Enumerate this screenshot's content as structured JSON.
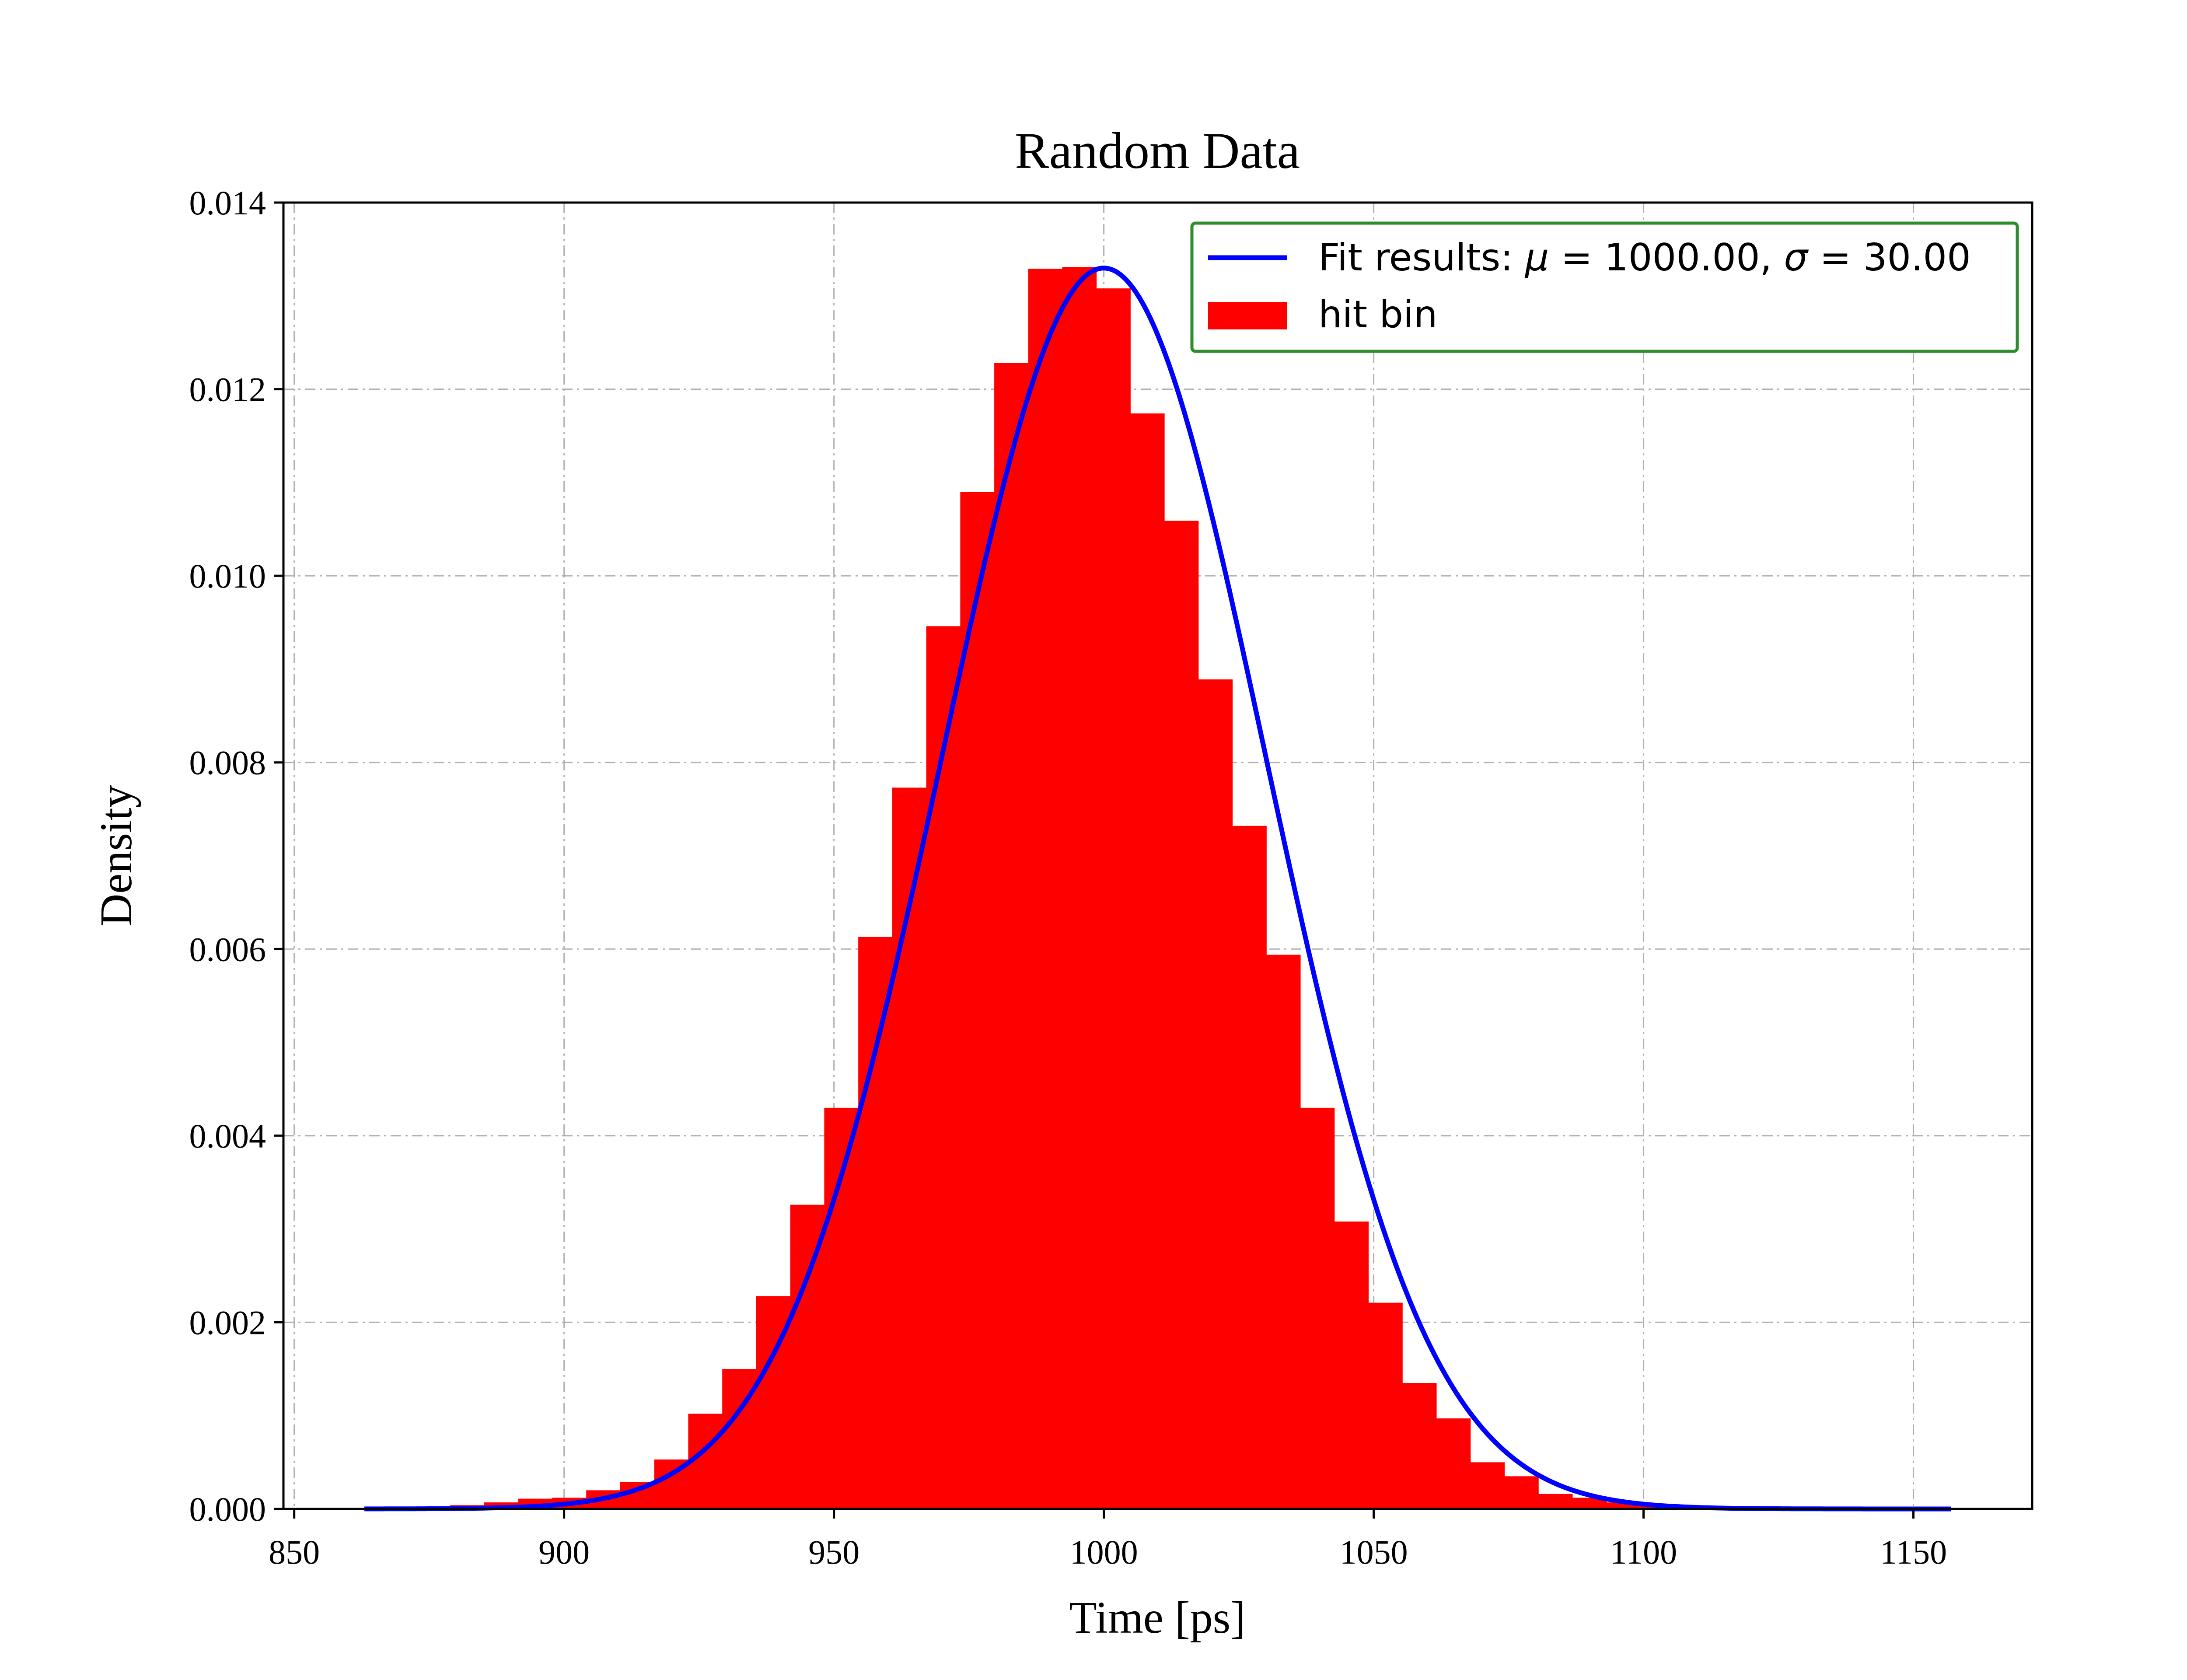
{
  "chart_data": {
    "type": "bar",
    "title": "Random Data",
    "xlabel": "Time [ps]",
    "ylabel": "Density",
    "xlim": [
      848,
      1172
    ],
    "ylim": [
      0,
      0.014
    ],
    "xticks": [
      850,
      900,
      950,
      1000,
      1050,
      1100,
      1150
    ],
    "xtick_labels": [
      "850",
      "900",
      "950",
      "1000",
      "1050",
      "1100",
      "1150"
    ],
    "yticks": [
      0,
      0.002,
      0.004,
      0.006,
      0.008,
      0.01,
      0.012,
      0.014
    ],
    "ytick_labels": [
      "0.000",
      "0.002",
      "0.004",
      "0.006",
      "0.008",
      "0.010",
      "0.012",
      "0.014"
    ],
    "grid": true,
    "legend_position": "top-right",
    "series": [
      {
        "name": "hit bin",
        "kind": "histogram",
        "color": "#ff0000",
        "bin_edges": [
          860.0,
          866.3,
          872.6,
          878.9,
          885.2,
          891.5,
          897.8,
          904.1,
          910.4,
          916.7,
          923.0,
          929.3,
          935.6,
          941.9,
          948.2,
          954.5,
          960.8,
          967.1,
          973.4,
          979.7,
          986.0,
          992.3,
          998.6,
          1004.9,
          1011.2,
          1017.5,
          1023.8,
          1030.1,
          1036.4,
          1042.7,
          1049.0,
          1055.3,
          1061.6,
          1067.9,
          1074.2,
          1080.5,
          1086.8,
          1093.1,
          1099.4,
          1105.7,
          1112.0,
          1118.3,
          1124.6,
          1130.9,
          1137.2,
          1143.5,
          1149.8,
          1156.1
        ],
        "values": [
          1e-05,
          1e-05,
          2e-05,
          4e-05,
          7e-05,
          0.00011,
          0.00012,
          0.0002,
          0.00029,
          0.00053,
          0.00102,
          0.0015,
          0.00228,
          0.00326,
          0.0043,
          0.00613,
          0.00773,
          0.00946,
          0.0109,
          0.01228,
          0.01329,
          0.01331,
          0.01308,
          0.01174,
          0.01059,
          0.00889,
          0.00732,
          0.00594,
          0.0043,
          0.00308,
          0.00221,
          0.00135,
          0.00097,
          0.0005,
          0.00035,
          0.00016,
          0.00012,
          7e-05,
          4e-05,
          2e-05,
          1e-05,
          1e-05,
          0.0,
          0.0,
          0.0,
          0.0,
          0.0
        ]
      },
      {
        "name": "Fit results",
        "kind": "line",
        "color": "#0000ff",
        "mu": 1000.0,
        "sigma": 30.0,
        "x_range": [
          863,
          1157
        ]
      }
    ],
    "legend": {
      "fit_prefix": "Fit results: ",
      "mu_symbol": "μ",
      "mu_text": " = 1000.00, ",
      "sigma_symbol": "σ",
      "sigma_text": " = 30.00",
      "hist_label": "hit bin",
      "border_color": "#2e8b2e"
    }
  }
}
